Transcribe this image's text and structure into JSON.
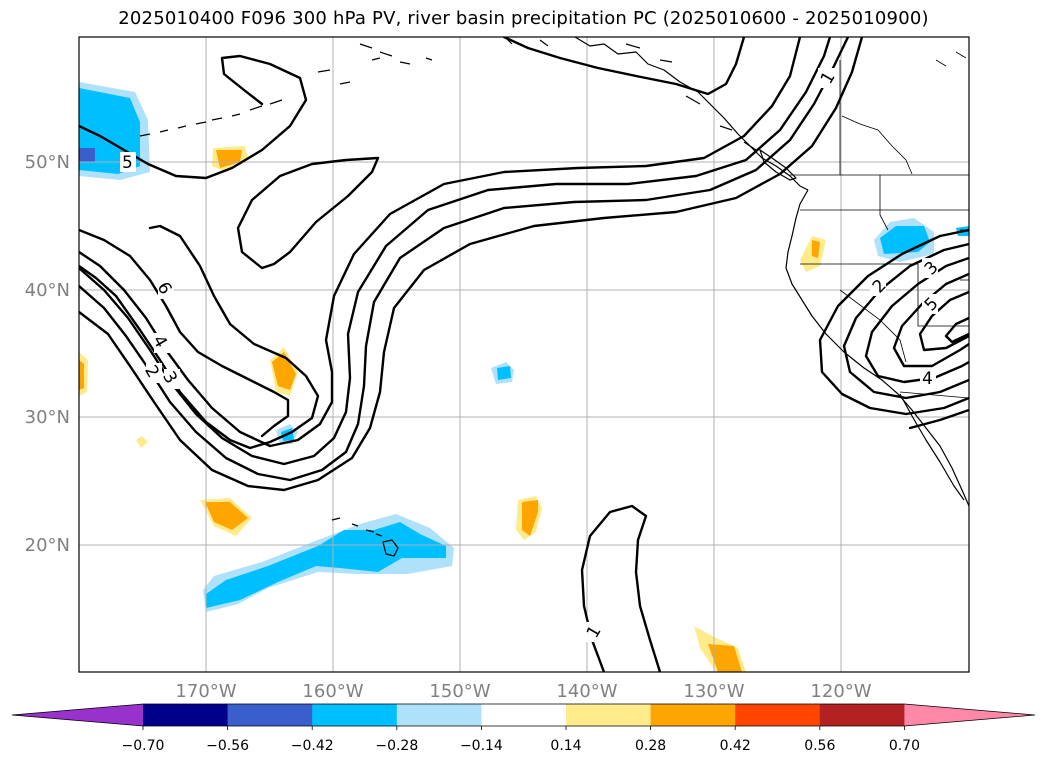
{
  "title": "2025010400 F096 300 hPa PV, river basin precipitation PC (2025010600 - 2025010900)",
  "map": {
    "lat_labels": [
      "50°N",
      "40°N",
      "30°N",
      "20°N"
    ],
    "lon_labels": [
      "170°W",
      "160°W",
      "150°W",
      "140°W",
      "130°W",
      "120°W"
    ],
    "pv_contour_labels": [
      "5",
      "6",
      "4",
      "3",
      "2",
      "1",
      "1",
      "2",
      "3",
      "5",
      "4"
    ]
  },
  "colorbar": {
    "colors": [
      "#9932cc",
      "#00008b",
      "#3a5fcd",
      "#00bfff",
      "#afe1fa",
      "#ffffff",
      "#ffeb8c",
      "#ffa500",
      "#ff4500",
      "#b22222",
      "#ff88a8"
    ],
    "tick_labels": [
      "−0.70",
      "−0.56",
      "−0.42",
      "−0.28",
      "−0.14",
      "0.14",
      "0.28",
      "0.42",
      "0.56",
      "0.70"
    ]
  }
}
